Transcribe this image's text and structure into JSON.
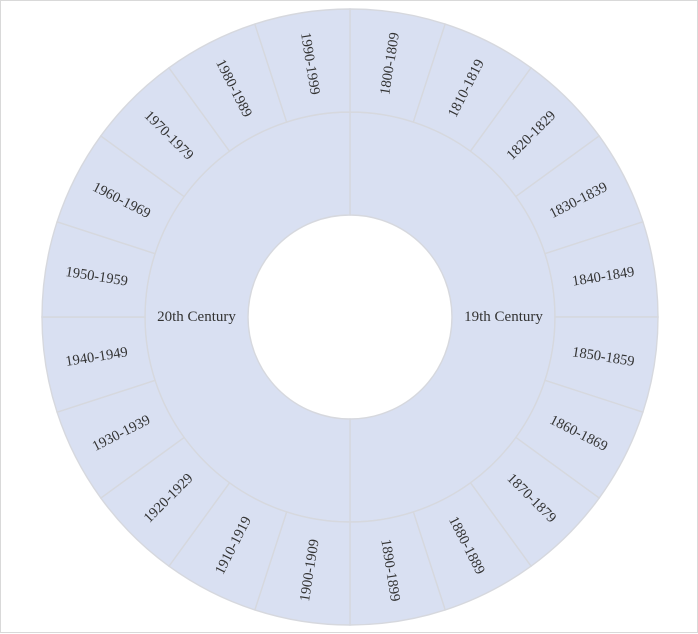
{
  "chart_data": {
    "type": "sunburst",
    "colors": {
      "fill": "#d9e0f2",
      "stroke": "#d6d8de",
      "text": "#333333",
      "border": "#d9d9d9"
    },
    "inner_ring": [
      {
        "label": "19th Century",
        "value": 10
      },
      {
        "label": "20th Century",
        "value": 10
      }
    ],
    "outer_ring": [
      {
        "label": "1800-1809",
        "parent": "19th Century",
        "value": 1
      },
      {
        "label": "1810-1819",
        "parent": "19th Century",
        "value": 1
      },
      {
        "label": "1820-1829",
        "parent": "19th Century",
        "value": 1
      },
      {
        "label": "1830-1839",
        "parent": "19th Century",
        "value": 1
      },
      {
        "label": "1840-1849",
        "parent": "19th Century",
        "value": 1
      },
      {
        "label": "1850-1859",
        "parent": "19th Century",
        "value": 1
      },
      {
        "label": "1860-1869",
        "parent": "19th Century",
        "value": 1
      },
      {
        "label": "1870-1879",
        "parent": "19th Century",
        "value": 1
      },
      {
        "label": "1880-1889",
        "parent": "19th Century",
        "value": 1
      },
      {
        "label": "1890-1899",
        "parent": "19th Century",
        "value": 1
      },
      {
        "label": "1900-1909",
        "parent": "20th Century",
        "value": 1
      },
      {
        "label": "1910-1919",
        "parent": "20th Century",
        "value": 1
      },
      {
        "label": "1920-1929",
        "parent": "20th Century",
        "value": 1
      },
      {
        "label": "1930-1939",
        "parent": "20th Century",
        "value": 1
      },
      {
        "label": "1940-1949",
        "parent": "20th Century",
        "value": 1
      },
      {
        "label": "1950-1959",
        "parent": "20th Century",
        "value": 1
      },
      {
        "label": "1960-1969",
        "parent": "20th Century",
        "value": 1
      },
      {
        "label": "1970-1979",
        "parent": "20th Century",
        "value": 1
      },
      {
        "label": "1980-1989",
        "parent": "20th Century",
        "value": 1
      },
      {
        "label": "1990-1999",
        "parent": "20th Century",
        "value": 1
      }
    ]
  }
}
